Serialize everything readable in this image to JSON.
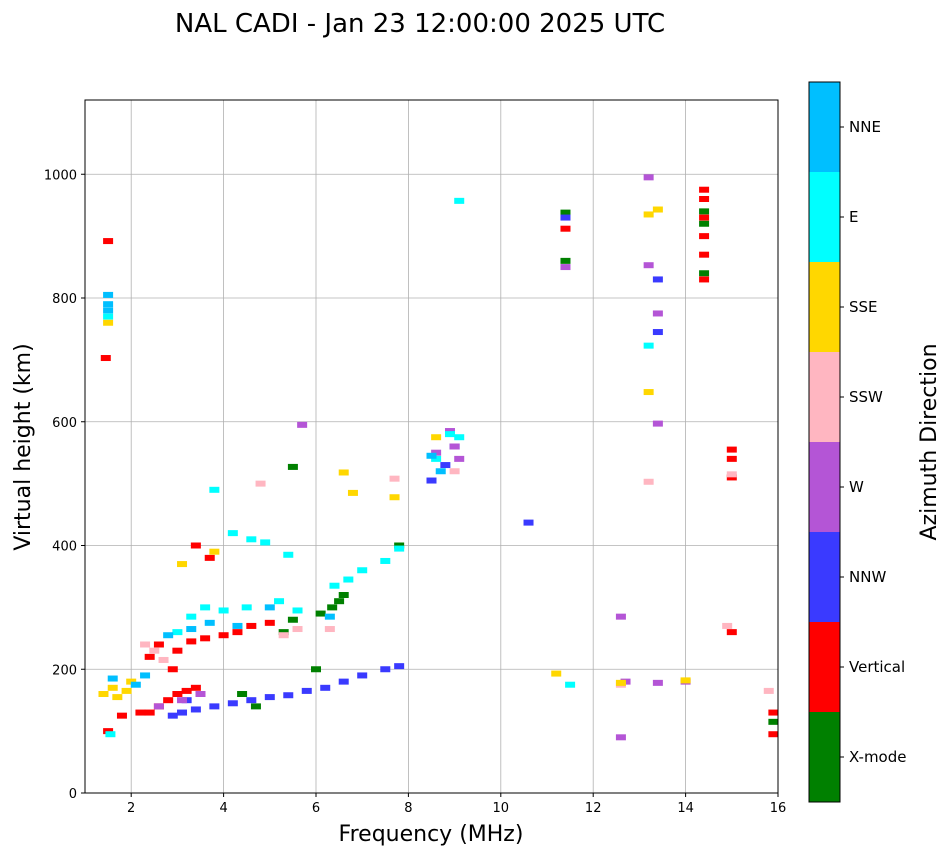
{
  "chart_data": {
    "type": "scatter",
    "title": "NAL CADI - Jan 23 12:00:00 2025 UTC",
    "xlabel": "Frequency (MHz)",
    "ylabel": "Virtual height (km)",
    "xlim": [
      1,
      16
    ],
    "ylim": [
      0,
      1120
    ],
    "xticks": [
      2,
      4,
      6,
      8,
      10,
      12,
      14,
      16
    ],
    "yticks": [
      0,
      200,
      400,
      600,
      800,
      1000
    ],
    "grid": true,
    "colorbar": {
      "title": "Azimuth Direction",
      "categories": [
        {
          "name": "X-mode",
          "color": "#008000"
        },
        {
          "name": "Vertical",
          "color": "#ff0000"
        },
        {
          "name": "NNW",
          "color": "#3a3aff"
        },
        {
          "name": "W",
          "color": "#b455d6"
        },
        {
          "name": "SSW",
          "color": "#ffb6c1"
        },
        {
          "name": "SSE",
          "color": "#ffd700"
        },
        {
          "name": "E",
          "color": "#00ffff"
        },
        {
          "name": "NNE",
          "color": "#00bfff"
        }
      ]
    },
    "series": [
      {
        "name": "X-mode",
        "points": [
          [
            4.4,
            160
          ],
          [
            5.3,
            260
          ],
          [
            5.5,
            280
          ],
          [
            6.1,
            290
          ],
          [
            6.35,
            300
          ],
          [
            6.5,
            310
          ],
          [
            6.6,
            320
          ],
          [
            7.8,
            400
          ],
          [
            11.4,
            938
          ],
          [
            11.4,
            860
          ],
          [
            14.4,
            940
          ],
          [
            14.4,
            920
          ],
          [
            14.4,
            840
          ],
          [
            15.9,
            115
          ],
          [
            6.0,
            200
          ],
          [
            5.5,
            527
          ],
          [
            4.7,
            140
          ]
        ]
      },
      {
        "name": "Vertical",
        "points": [
          [
            1.5,
            892
          ],
          [
            1.45,
            703
          ],
          [
            1.5,
            100
          ],
          [
            1.8,
            125
          ],
          [
            2.2,
            130
          ],
          [
            2.4,
            130
          ],
          [
            2.6,
            140
          ],
          [
            2.8,
            150
          ],
          [
            3.0,
            160
          ],
          [
            3.2,
            165
          ],
          [
            3.4,
            170
          ],
          [
            2.4,
            220
          ],
          [
            2.6,
            240
          ],
          [
            3.0,
            230
          ],
          [
            3.3,
            245
          ],
          [
            3.6,
            250
          ],
          [
            4.0,
            255
          ],
          [
            4.3,
            260
          ],
          [
            4.6,
            270
          ],
          [
            5.0,
            275
          ],
          [
            2.9,
            200
          ],
          [
            3.7,
            380
          ],
          [
            3.4,
            400
          ],
          [
            11.4,
            912
          ],
          [
            14.4,
            975
          ],
          [
            14.4,
            960
          ],
          [
            14.4,
            930
          ],
          [
            14.4,
            900
          ],
          [
            14.4,
            870
          ],
          [
            14.4,
            830
          ],
          [
            15.0,
            555
          ],
          [
            15.0,
            540
          ],
          [
            15.0,
            510
          ],
          [
            15.0,
            260
          ],
          [
            15.9,
            130
          ],
          [
            15.9,
            95
          ]
        ]
      },
      {
        "name": "NNW",
        "points": [
          [
            2.9,
            125
          ],
          [
            3.1,
            130
          ],
          [
            3.4,
            135
          ],
          [
            3.8,
            140
          ],
          [
            4.2,
            145
          ],
          [
            4.6,
            150
          ],
          [
            5.0,
            155
          ],
          [
            5.4,
            158
          ],
          [
            5.8,
            165
          ],
          [
            6.2,
            170
          ],
          [
            6.6,
            180
          ],
          [
            7.0,
            190
          ],
          [
            7.5,
            200
          ],
          [
            7.8,
            205
          ],
          [
            8.5,
            505
          ],
          [
            8.8,
            530
          ],
          [
            9.0,
            560
          ],
          [
            10.6,
            437
          ],
          [
            11.4,
            930
          ],
          [
            13.4,
            830
          ],
          [
            13.4,
            745
          ],
          [
            3.2,
            150
          ]
        ]
      },
      {
        "name": "W",
        "points": [
          [
            2.6,
            140
          ],
          [
            3.1,
            150
          ],
          [
            3.5,
            160
          ],
          [
            8.6,
            550
          ],
          [
            8.9,
            585
          ],
          [
            9.0,
            560
          ],
          [
            9.1,
            540
          ],
          [
            11.4,
            850
          ],
          [
            12.6,
            285
          ],
          [
            12.6,
            90
          ],
          [
            12.7,
            180
          ],
          [
            13.2,
            995
          ],
          [
            13.2,
            853
          ],
          [
            13.4,
            775
          ],
          [
            13.4,
            597
          ],
          [
            13.4,
            178
          ],
          [
            14.0,
            180
          ],
          [
            5.7,
            595
          ]
        ]
      },
      {
        "name": "SSW",
        "points": [
          [
            2.3,
            240
          ],
          [
            2.5,
            230
          ],
          [
            2.7,
            215
          ],
          [
            5.3,
            255
          ],
          [
            5.6,
            265
          ],
          [
            6.3,
            265
          ],
          [
            9.0,
            520
          ],
          [
            12.6,
            175
          ],
          [
            13.2,
            503
          ],
          [
            14.9,
            270
          ],
          [
            15.0,
            515
          ],
          [
            15.8,
            165
          ],
          [
            4.8,
            500
          ],
          [
            7.7,
            508
          ]
        ]
      },
      {
        "name": "SSE",
        "points": [
          [
            1.5,
            760
          ],
          [
            1.4,
            160
          ],
          [
            1.6,
            170
          ],
          [
            1.7,
            155
          ],
          [
            1.9,
            165
          ],
          [
            2.0,
            180
          ],
          [
            3.1,
            370
          ],
          [
            3.8,
            390
          ],
          [
            6.6,
            518
          ],
          [
            6.8,
            485
          ],
          [
            7.7,
            478
          ],
          [
            11.2,
            193
          ],
          [
            12.6,
            178
          ],
          [
            13.2,
            935
          ],
          [
            13.4,
            943
          ],
          [
            13.2,
            648
          ],
          [
            14.0,
            182
          ],
          [
            8.6,
            575
          ]
        ]
      },
      {
        "name": "E",
        "points": [
          [
            1.5,
            770
          ],
          [
            1.55,
            95
          ],
          [
            3.0,
            260
          ],
          [
            3.3,
            285
          ],
          [
            3.6,
            300
          ],
          [
            4.0,
            295
          ],
          [
            4.5,
            300
          ],
          [
            5.2,
            310
          ],
          [
            5.6,
            295
          ],
          [
            6.4,
            335
          ],
          [
            6.7,
            345
          ],
          [
            7.0,
            360
          ],
          [
            7.5,
            375
          ],
          [
            7.8,
            395
          ],
          [
            3.8,
            490
          ],
          [
            4.2,
            420
          ],
          [
            4.6,
            410
          ],
          [
            4.9,
            405
          ],
          [
            5.4,
            385
          ],
          [
            8.6,
            540
          ],
          [
            8.9,
            580
          ],
          [
            9.1,
            575
          ],
          [
            9.1,
            957
          ],
          [
            11.5,
            175
          ],
          [
            13.2,
            723
          ]
        ]
      },
      {
        "name": "NNE",
        "points": [
          [
            1.5,
            805
          ],
          [
            1.5,
            790
          ],
          [
            1.5,
            780
          ],
          [
            1.6,
            185
          ],
          [
            2.1,
            175
          ],
          [
            2.3,
            190
          ],
          [
            2.8,
            255
          ],
          [
            3.3,
            265
          ],
          [
            3.7,
            275
          ],
          [
            4.3,
            270
          ],
          [
            5.0,
            300
          ],
          [
            8.5,
            545
          ],
          [
            8.7,
            520
          ],
          [
            6.3,
            285
          ]
        ]
      }
    ]
  }
}
